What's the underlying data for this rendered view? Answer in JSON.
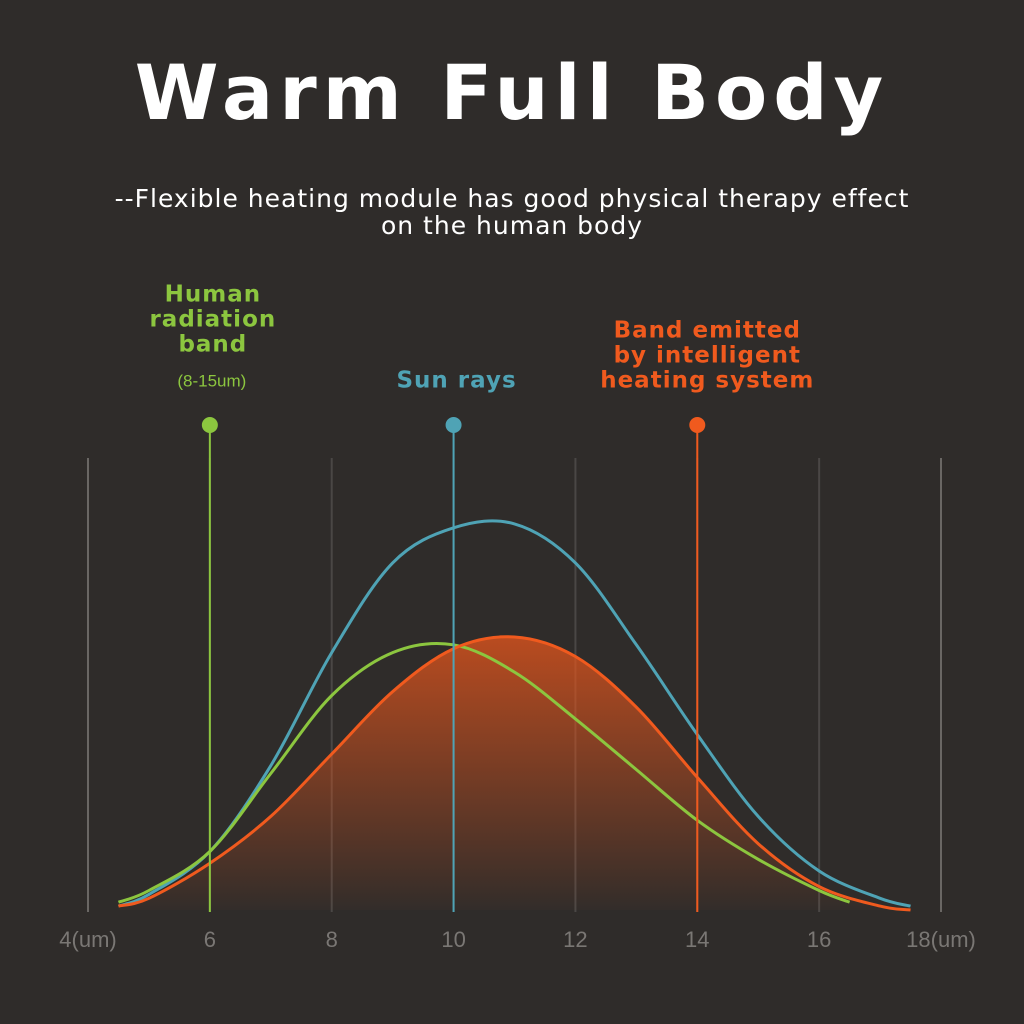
{
  "chart_data": {
    "type": "line",
    "title": "Warm Full Body",
    "subtitle_lines": [
      "--Flexible heating module has good physical therapy effect",
      "on the human body"
    ],
    "xlim": [
      4,
      18
    ],
    "xticks": [
      {
        "value": 4,
        "label": "4(um)"
      },
      6,
      8,
      10,
      12,
      14,
      16,
      {
        "value": 18,
        "label": "18(um)"
      }
    ],
    "ylim": [
      0,
      1
    ],
    "grid": true,
    "series": [
      {
        "name": "Sun rays",
        "color": "#4fa3b5",
        "x": [
          4.5,
          5,
          6,
          7,
          8,
          9,
          10,
          11,
          12,
          13,
          14,
          15,
          16,
          17,
          17.5
        ],
        "values": [
          0.01,
          0.04,
          0.15,
          0.37,
          0.66,
          0.89,
          0.98,
          0.99,
          0.89,
          0.68,
          0.45,
          0.24,
          0.1,
          0.03,
          0.01
        ]
      },
      {
        "name": "Human radiation band",
        "color": "#8cc63f",
        "x": [
          4.5,
          5,
          6,
          7,
          8,
          9,
          10,
          11,
          12,
          13,
          14,
          15,
          16,
          16.5
        ],
        "values": [
          0.02,
          0.05,
          0.15,
          0.35,
          0.55,
          0.66,
          0.68,
          0.61,
          0.49,
          0.36,
          0.23,
          0.13,
          0.05,
          0.02
        ]
      },
      {
        "name": "Band emitted by intelligent heating system",
        "color": "#f05a1e",
        "fill": true,
        "x": [
          4.5,
          5,
          6,
          7,
          8,
          9,
          10,
          11,
          12,
          13,
          14,
          15,
          16,
          17,
          17.5
        ],
        "values": [
          0.01,
          0.03,
          0.12,
          0.24,
          0.4,
          0.56,
          0.67,
          0.7,
          0.65,
          0.52,
          0.34,
          0.17,
          0.06,
          0.01,
          0
        ]
      }
    ],
    "markers": [
      {
        "x": 6,
        "color": "#8cc63f",
        "label_lines": [
          "Human",
          "radiation",
          "band"
        ],
        "note": "(8-15um)"
      },
      {
        "x": 10,
        "color": "#4fa3b5",
        "label_lines": [
          "Sun rays"
        ]
      },
      {
        "x": 14,
        "color": "#f05a1e",
        "label_lines": [
          "Band emitted",
          "by intelligent",
          "heating system"
        ]
      }
    ]
  }
}
